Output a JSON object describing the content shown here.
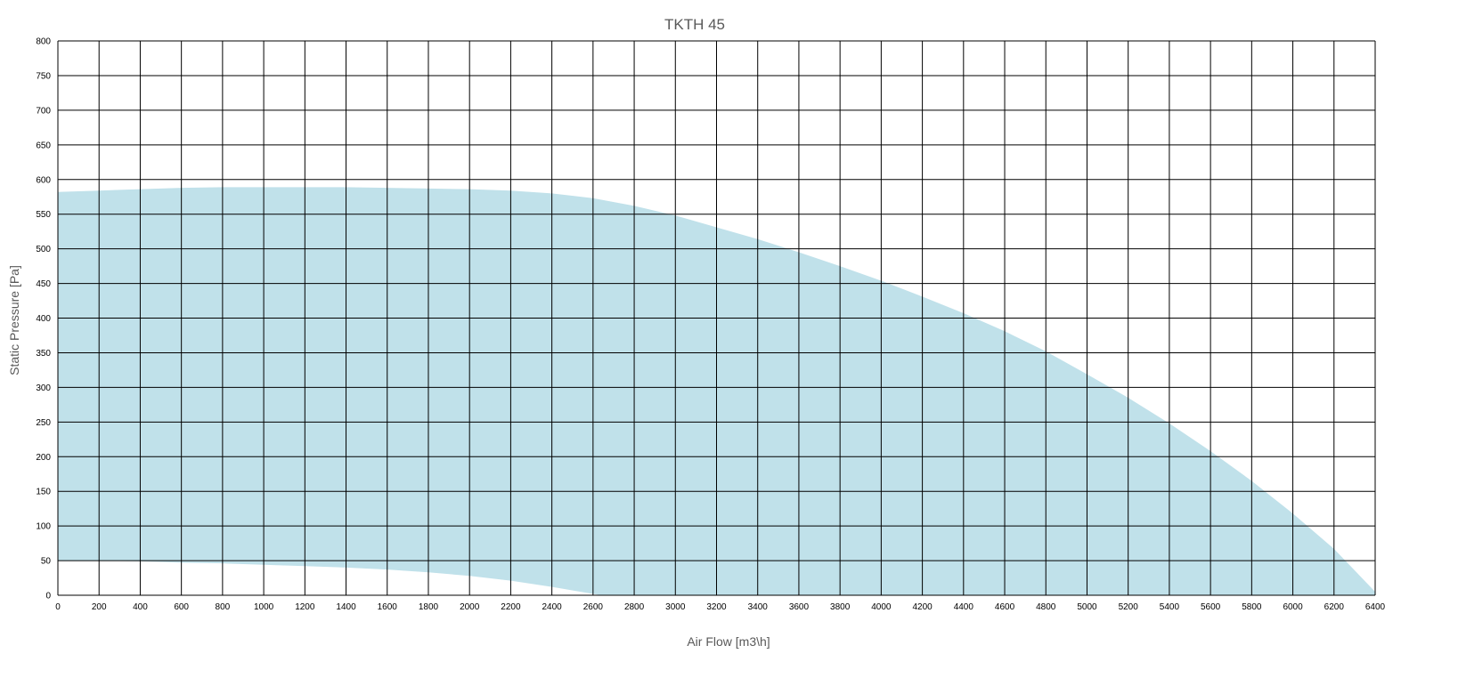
{
  "chart_data": {
    "type": "area",
    "title": "TKTH 45",
    "xlabel": "Air Flow [m3\\h]",
    "ylabel": "Static Pressure [Pa]",
    "xlim": [
      0,
      6400
    ],
    "ylim": [
      0,
      800
    ],
    "x_ticks": [
      "0",
      "200",
      "400",
      "600",
      "800",
      "1000",
      "1200",
      "1400",
      "1600",
      "1800",
      "2000",
      "2200",
      "2400",
      "2600",
      "2800",
      "3000",
      "3200",
      "3400",
      "3600",
      "3800",
      "4000",
      "4200",
      "4400",
      "4600",
      "4800",
      "5000",
      "5200",
      "5400",
      "5600",
      "5800",
      "6000",
      "6200",
      "6400"
    ],
    "y_ticks": [
      "0",
      "50",
      "100",
      "150",
      "200",
      "250",
      "300",
      "350",
      "400",
      "450",
      "500",
      "550",
      "600",
      "650",
      "700",
      "750",
      "800"
    ],
    "grid": true,
    "fill_color": "#c0e1ea",
    "series": [
      {
        "role": "upper_boundary",
        "points": [
          [
            0,
            582
          ],
          [
            200,
            584
          ],
          [
            400,
            586
          ],
          [
            600,
            588
          ],
          [
            800,
            589
          ],
          [
            1000,
            589
          ],
          [
            1200,
            589
          ],
          [
            1400,
            589
          ],
          [
            1600,
            588
          ],
          [
            1800,
            587
          ],
          [
            2000,
            586
          ],
          [
            2200,
            584
          ],
          [
            2400,
            580
          ],
          [
            2600,
            573
          ],
          [
            2800,
            562
          ],
          [
            3000,
            548
          ],
          [
            3200,
            531
          ],
          [
            3400,
            514
          ],
          [
            3600,
            495
          ],
          [
            3800,
            475
          ],
          [
            4000,
            454
          ],
          [
            4200,
            431
          ],
          [
            4400,
            407
          ],
          [
            4600,
            381
          ],
          [
            4800,
            352
          ],
          [
            5000,
            319
          ],
          [
            5200,
            285
          ],
          [
            5400,
            248
          ],
          [
            5600,
            208
          ],
          [
            5800,
            165
          ],
          [
            6000,
            118
          ],
          [
            6200,
            67
          ],
          [
            6400,
            5
          ]
        ]
      },
      {
        "role": "lower_boundary",
        "points": [
          [
            0,
            50
          ],
          [
            200,
            50
          ],
          [
            400,
            49
          ],
          [
            600,
            47
          ],
          [
            800,
            46
          ],
          [
            1000,
            44
          ],
          [
            1200,
            42
          ],
          [
            1400,
            40
          ],
          [
            1600,
            37
          ],
          [
            1800,
            33
          ],
          [
            2000,
            28
          ],
          [
            2200,
            21
          ],
          [
            2400,
            12
          ],
          [
            2600,
            2
          ],
          [
            2640,
            0
          ]
        ]
      }
    ]
  }
}
